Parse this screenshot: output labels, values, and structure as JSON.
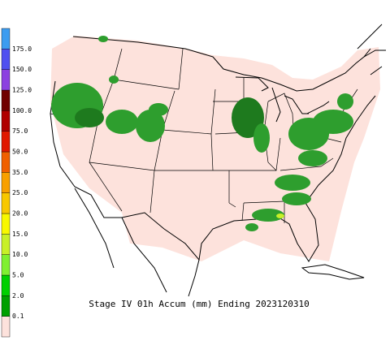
{
  "title": "Stage IV 01h Accum (mm) Ending 2023120310",
  "colorbar": {
    "labels": [
      "0.1",
      "2.0",
      "5.0",
      "10.0",
      "15.0",
      "20.0",
      "25.0",
      "35.0",
      "50.0",
      "75.0",
      "100.0",
      "125.0",
      "150.0",
      "175.0"
    ],
    "colors": [
      "#fde2dc",
      "#00a000",
      "#00d000",
      "#80f030",
      "#c8f028",
      "#f8f800",
      "#f8c800",
      "#f8a000",
      "#f06000",
      "#e01800",
      "#b00000",
      "#700000",
      "#8c40e0",
      "#5050f0",
      "#3c9cf0"
    ]
  }
}
